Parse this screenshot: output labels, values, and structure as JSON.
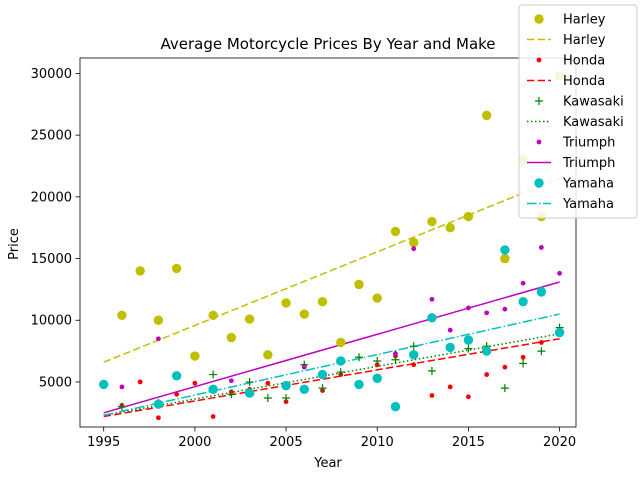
{
  "chart_data": {
    "type": "scatter",
    "title": "Average Motorcycle Prices By Year and Make",
    "xlabel": "Year",
    "ylabel": "Price",
    "xlim": [
      1993.7,
      2020.9
    ],
    "ylim": [
      1350,
      31250
    ],
    "xticks": [
      1995,
      2000,
      2005,
      2010,
      2015,
      2020
    ],
    "yticks": [
      5000,
      10000,
      15000,
      20000,
      25000,
      30000
    ],
    "grid": false,
    "legend_position": "top-right",
    "series": [
      {
        "name": "Harley",
        "color": "#bfbf00",
        "marker": "circle-large",
        "points": [
          [
            1996,
            10400
          ],
          [
            1997,
            14000
          ],
          [
            1998,
            10000
          ],
          [
            1999,
            14200
          ],
          [
            2000,
            7100
          ],
          [
            2001,
            10400
          ],
          [
            2002,
            8600
          ],
          [
            2003,
            10100
          ],
          [
            2004,
            7200
          ],
          [
            2005,
            11400
          ],
          [
            2006,
            10500
          ],
          [
            2007,
            11500
          ],
          [
            2008,
            8200
          ],
          [
            2009,
            12900
          ],
          [
            2010,
            11800
          ],
          [
            2011,
            17200
          ],
          [
            2012,
            16300
          ],
          [
            2013,
            18000
          ],
          [
            2014,
            17500
          ],
          [
            2015,
            18400
          ],
          [
            2016,
            26600
          ],
          [
            2017,
            15000
          ],
          [
            2018,
            23000
          ],
          [
            2019,
            18400
          ],
          [
            2020,
            29800
          ]
        ],
        "trend_name": "Harley",
        "trend_style": "dashed",
        "trend": [
          [
            1995,
            6600
          ],
          [
            2020,
            21500
          ]
        ]
      },
      {
        "name": "Honda",
        "color": "#ff0000",
        "marker": "dot",
        "points": [
          [
            1996,
            3100
          ],
          [
            1997,
            5000
          ],
          [
            1998,
            2100
          ],
          [
            1999,
            4000
          ],
          [
            2000,
            4900
          ],
          [
            2001,
            2200
          ],
          [
            2002,
            4200
          ],
          [
            2003,
            4400
          ],
          [
            2004,
            4900
          ],
          [
            2005,
            3400
          ],
          [
            2006,
            6300
          ],
          [
            2007,
            4300
          ],
          [
            2008,
            5600
          ],
          [
            2009,
            4700
          ],
          [
            2010,
            6400
          ],
          [
            2011,
            7100
          ],
          [
            2012,
            6400
          ],
          [
            2013,
            3900
          ],
          [
            2014,
            4600
          ],
          [
            2015,
            3800
          ],
          [
            2016,
            5600
          ],
          [
            2017,
            6200
          ],
          [
            2018,
            7000
          ],
          [
            2019,
            8200
          ],
          [
            2020,
            9100
          ]
        ],
        "trend_name": "Honda",
        "trend_style": "dashed",
        "trend": [
          [
            1995,
            2200
          ],
          [
            2020,
            8500
          ]
        ]
      },
      {
        "name": "Kawasaki",
        "color": "#008000",
        "marker": "plus",
        "points": [
          [
            1996,
            3000
          ],
          [
            1998,
            3300
          ],
          [
            2001,
            5600
          ],
          [
            2002,
            4000
          ],
          [
            2003,
            5000
          ],
          [
            2004,
            3700
          ],
          [
            2005,
            3700
          ],
          [
            2006,
            6400
          ],
          [
            2007,
            4500
          ],
          [
            2008,
            5800
          ],
          [
            2009,
            7000
          ],
          [
            2010,
            6700
          ],
          [
            2011,
            6800
          ],
          [
            2012,
            7900
          ],
          [
            2013,
            5900
          ],
          [
            2015,
            7700
          ],
          [
            2016,
            7900
          ],
          [
            2017,
            4500
          ],
          [
            2018,
            6500
          ],
          [
            2019,
            7500
          ],
          [
            2020,
            9400
          ]
        ],
        "trend_name": "Kawasaki",
        "trend_style": "dotted",
        "trend": [
          [
            1995,
            2300
          ],
          [
            2020,
            8900
          ]
        ]
      },
      {
        "name": "Triumph",
        "color": "#bf00bf",
        "marker": "dot",
        "points": [
          [
            1996,
            4600
          ],
          [
            1998,
            8500
          ],
          [
            2002,
            5100
          ],
          [
            2006,
            6200
          ],
          [
            2011,
            7300
          ],
          [
            2012,
            15800
          ],
          [
            2013,
            11700
          ],
          [
            2014,
            9200
          ],
          [
            2015,
            11000
          ],
          [
            2016,
            10600
          ],
          [
            2017,
            10900
          ],
          [
            2018,
            13000
          ],
          [
            2019,
            15900
          ],
          [
            2020,
            13800
          ]
        ],
        "trend_name": "Triumph",
        "trend_style": "solid",
        "trend": [
          [
            1995,
            2500
          ],
          [
            2020,
            13100
          ]
        ]
      },
      {
        "name": "Yamaha",
        "color": "#00bfbf",
        "marker": "circle-large",
        "points": [
          [
            1995,
            4800
          ],
          [
            1998,
            3200
          ],
          [
            1999,
            5500
          ],
          [
            2001,
            4400
          ],
          [
            2003,
            4100
          ],
          [
            2005,
            4700
          ],
          [
            2006,
            4400
          ],
          [
            2007,
            5600
          ],
          [
            2008,
            6700
          ],
          [
            2009,
            4800
          ],
          [
            2010,
            5300
          ],
          [
            2011,
            3000
          ],
          [
            2012,
            7200
          ],
          [
            2013,
            10200
          ],
          [
            2014,
            7800
          ],
          [
            2015,
            8400
          ],
          [
            2016,
            7500
          ],
          [
            2017,
            15700
          ],
          [
            2018,
            11500
          ],
          [
            2019,
            12300
          ],
          [
            2020,
            9000
          ]
        ],
        "trend_name": "Yamaha",
        "trend_style": "dashdot",
        "trend": [
          [
            1995,
            2300
          ],
          [
            2020,
            10500
          ]
        ]
      }
    ]
  }
}
